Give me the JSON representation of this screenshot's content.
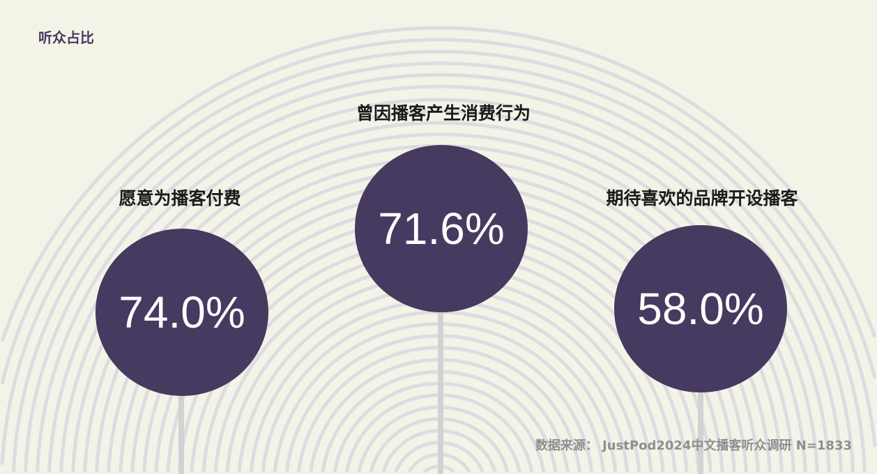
{
  "title": "听众占比",
  "source": "数据来源： JustPod2024中文播客听众调研  N=1833",
  "colors": {
    "background": "#f4f3e8",
    "circle": "#463a60",
    "rings": "#dcdde0",
    "title": "#463a60"
  },
  "chart_data": {
    "type": "bubble-percent",
    "categories": [
      "愿意为播客付费",
      "曾因播客产生消费行为",
      "期待喜欢的品牌开设播客"
    ],
    "values": [
      74.0,
      71.6,
      58.0
    ],
    "labels": [
      "74.0%",
      "71.6%",
      "58.0%"
    ]
  }
}
